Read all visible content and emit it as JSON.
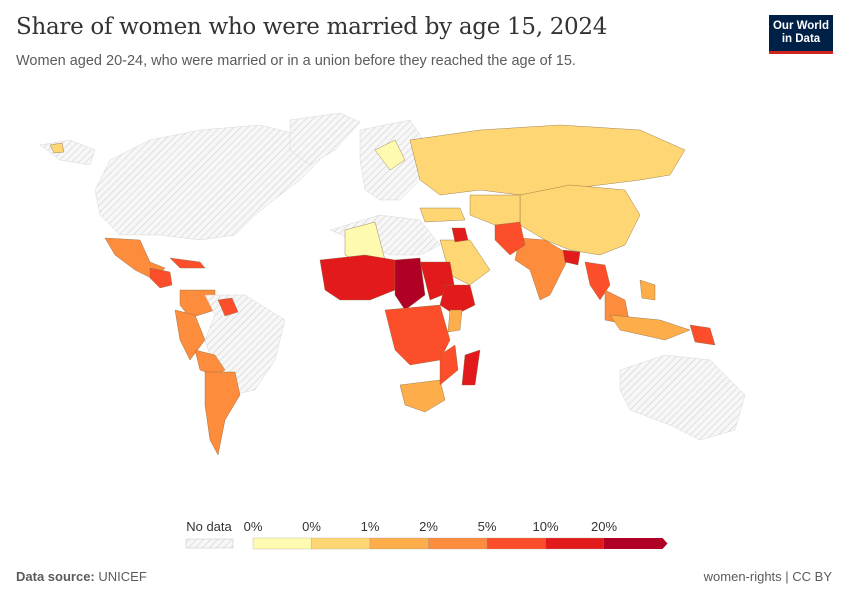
{
  "header": {
    "title": "Share of women who were married by age 15, 2024",
    "subtitle": "Women aged 20-24, who were married or in a union before they reached the age of 15.",
    "logo_text": "Our World in Data"
  },
  "legend": {
    "no_data_label": "No data",
    "ticks": [
      "0%",
      "0%",
      "1%",
      "2%",
      "5%",
      "10%",
      "20%"
    ],
    "colors": [
      "#fefbb0",
      "#fed673",
      "#fdae4a",
      "#fd8c3c",
      "#fc4e2a",
      "#e31a1c",
      "#b10026"
    ],
    "no_data_color": "#e0e0e0"
  },
  "footer": {
    "source_label": "Data source:",
    "source": "UNICEF",
    "license": "women-rights | CC BY"
  }
}
